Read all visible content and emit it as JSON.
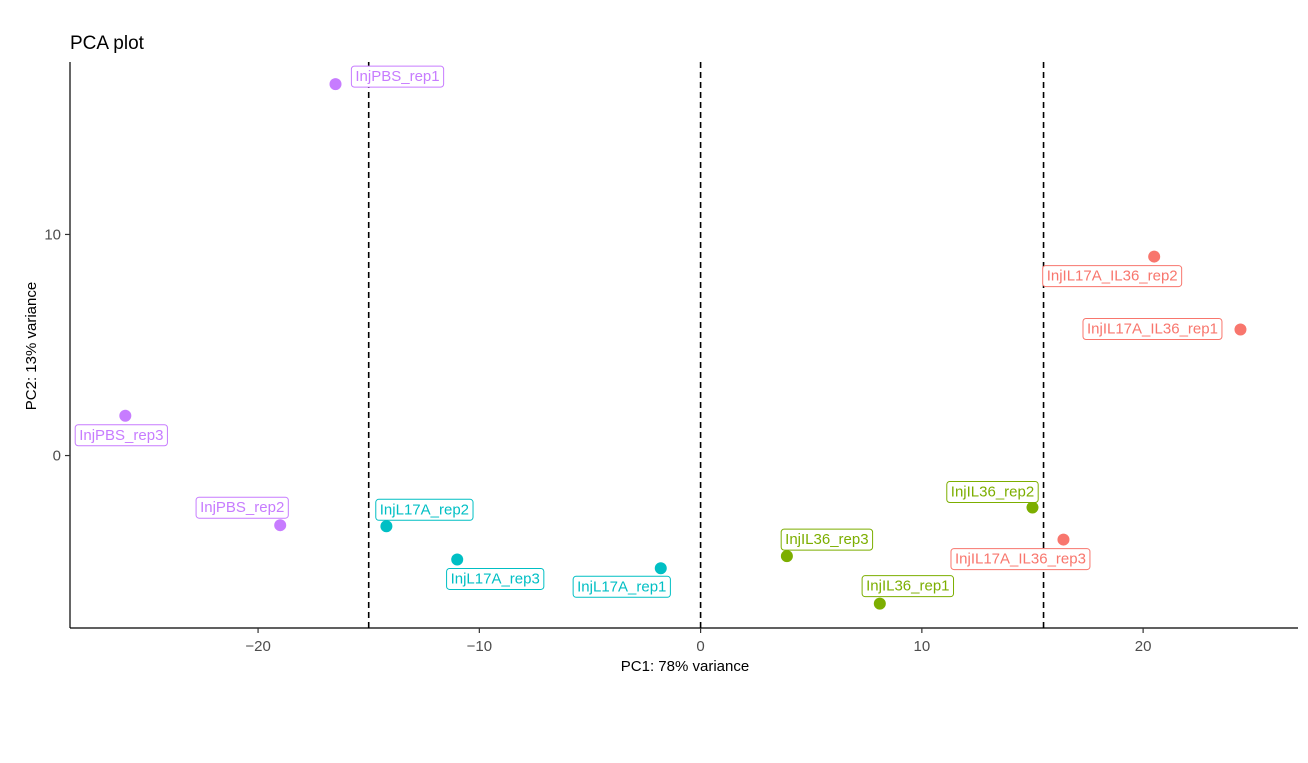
{
  "chart_data": {
    "type": "scatter",
    "title": "PCA plot",
    "xlabel": "PC1: 78% variance",
    "ylabel": "PC2: 13% variance",
    "xlim": [
      -28.5,
      27
    ],
    "ylim": [
      -7.8,
      17.8
    ],
    "x_ticks": [
      -20,
      -10,
      0,
      10,
      20
    ],
    "x_tick_labels": [
      "−20",
      "−10",
      "0",
      "10",
      "20"
    ],
    "y_ticks": [
      0,
      10
    ],
    "y_tick_labels": [
      "0",
      "10"
    ],
    "grid": false,
    "legend": "none",
    "vlines": [
      -15,
      0,
      15.5
    ],
    "groups": [
      {
        "key": "InjPBS",
        "color": "#C77CFF"
      },
      {
        "key": "InjL17A",
        "color": "#00BFC4"
      },
      {
        "key": "InjIL36",
        "color": "#7CAE00"
      },
      {
        "key": "InjIL17A_IL36",
        "color": "#F8766D"
      }
    ],
    "points": [
      {
        "label": "InjPBS_rep1",
        "group": "InjPBS",
        "x": -16.5,
        "y": 16.8
      },
      {
        "label": "InjPBS_rep2",
        "group": "InjPBS",
        "x": -19.0,
        "y": -3.15
      },
      {
        "label": "InjPBS_rep3",
        "group": "InjPBS",
        "x": -26.0,
        "y": 1.8
      },
      {
        "label": "InjL17A_rep1",
        "group": "InjL17A",
        "x": -1.8,
        "y": -5.1
      },
      {
        "label": "InjL17A_rep2",
        "group": "InjL17A",
        "x": -14.2,
        "y": -3.2
      },
      {
        "label": "InjL17A_rep3",
        "group": "InjL17A",
        "x": -11.0,
        "y": -4.7
      },
      {
        "label": "InjIL36_rep1",
        "group": "InjIL36",
        "x": 8.1,
        "y": -6.7
      },
      {
        "label": "InjIL36_rep2",
        "group": "InjIL36",
        "x": 15.0,
        "y": -2.35
      },
      {
        "label": "InjIL36_rep3",
        "group": "InjIL36",
        "x": 3.9,
        "y": -4.55
      },
      {
        "label": "InjIL17A_IL36_rep1",
        "group": "InjIL17A_IL36",
        "x": 24.4,
        "y": 5.7
      },
      {
        "label": "InjIL17A_IL36_rep2",
        "group": "InjIL17A_IL36",
        "x": 20.5,
        "y": 9.0
      },
      {
        "label": "InjIL17A_IL36_rep3",
        "group": "InjIL17A_IL36",
        "x": 16.4,
        "y": -3.8
      }
    ]
  }
}
